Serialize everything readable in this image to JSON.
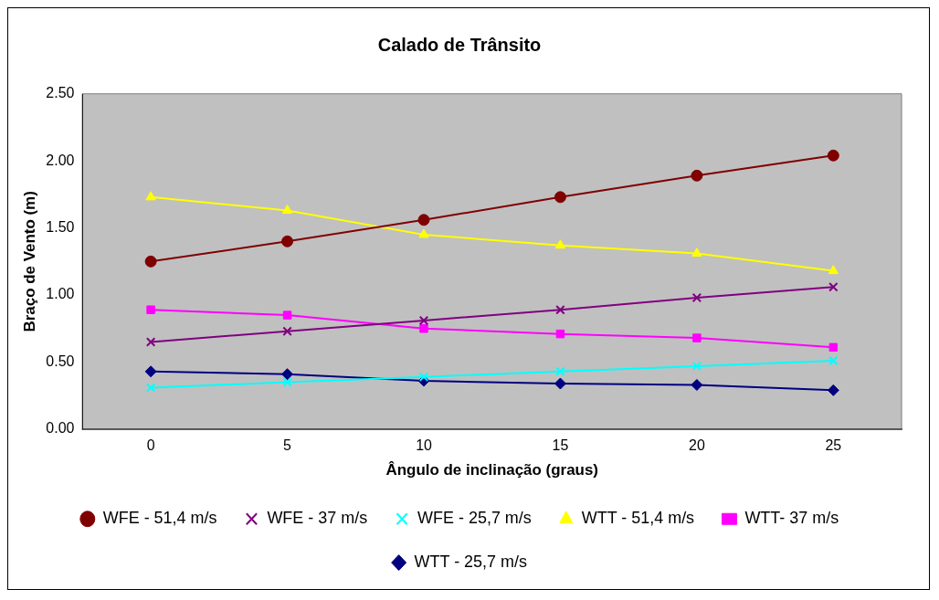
{
  "chart_data": {
    "type": "line",
    "title": "Calado de Trânsito",
    "xlabel": "Ângulo de inclinação (graus)",
    "ylabel": "Braço de Vento (m)",
    "categories": [
      "0",
      "5",
      "10",
      "15",
      "20",
      "25"
    ],
    "series": [
      {
        "name": "WTT - 25,7 m/s",
        "color": "#000080",
        "marker": "diamond",
        "values": [
          0.43,
          0.41,
          0.36,
          0.34,
          0.33,
          0.29
        ]
      },
      {
        "name": "WTT- 37 m/s",
        "color": "#ff00ff",
        "marker": "square",
        "values": [
          0.89,
          0.85,
          0.75,
          0.71,
          0.68,
          0.61
        ]
      },
      {
        "name": "WTT - 51,4 m/s",
        "color": "#ffff00",
        "marker": "triangle",
        "values": [
          1.73,
          1.63,
          1.45,
          1.37,
          1.31,
          1.18
        ]
      },
      {
        "name": "WFE - 25,7 m/s",
        "color": "#00ffff",
        "marker": "cross",
        "values": [
          0.31,
          0.35,
          0.39,
          0.43,
          0.47,
          0.51
        ]
      },
      {
        "name": "WFE - 37 m/s",
        "color": "#800080",
        "marker": "cross",
        "values": [
          0.65,
          0.73,
          0.81,
          0.89,
          0.98,
          1.06
        ]
      },
      {
        "name": "WFE - 51,4 m/s",
        "color": "#800000",
        "marker": "circle",
        "values": [
          1.25,
          1.4,
          1.56,
          1.73,
          1.89,
          2.04
        ]
      }
    ],
    "ylim": [
      0,
      2.5
    ],
    "yticks": [
      {
        "value": 0,
        "label": "0.00"
      },
      {
        "value": 0.5,
        "label": "0.50"
      },
      {
        "value": 1,
        "label": "1.00"
      },
      {
        "value": 1.5,
        "label": "1.50"
      },
      {
        "value": 2,
        "label": "2.00"
      },
      {
        "value": 2.5,
        "label": "2.50"
      }
    ],
    "grid": false,
    "legend": "bottom",
    "line_style": "solid"
  }
}
